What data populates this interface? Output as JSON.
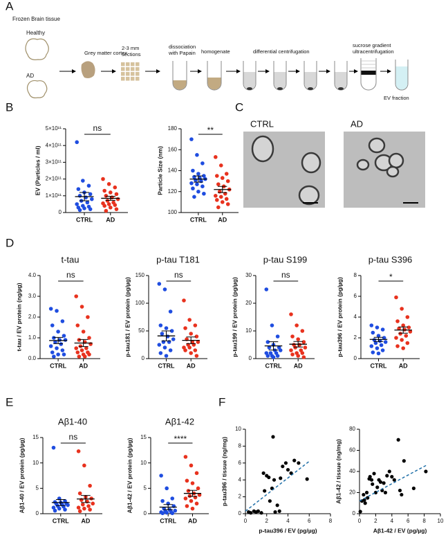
{
  "panel_labels": [
    "A",
    "B",
    "C",
    "D",
    "E",
    "F"
  ],
  "workflow": {
    "title": "Frozen Brain tissue",
    "groups": [
      "Healthy",
      "AD"
    ],
    "steps": [
      [
        "Grey matter cortex"
      ],
      [
        "2-3 mm",
        "sections"
      ],
      [
        "dissociation",
        "with Papain"
      ],
      [
        "homogenate"
      ],
      [
        "differential centrifugation"
      ],
      [
        "sucrose gradient",
        "ultracentrifugation"
      ]
    ],
    "output": "EV fraction"
  },
  "micrographs": {
    "labels": [
      "CTRL",
      "AD"
    ]
  },
  "chart_data": [
    {
      "type": "dotplot",
      "ylabel": "EV (Particles / ml)",
      "annotation": "ns",
      "categories": [
        "CTRL",
        "AD"
      ],
      "ylim": [
        0,
        500000000000
      ],
      "yticks": [
        0,
        {
          "value": 100000000000,
          "label": "1×10¹¹"
        },
        {
          "value": 200000000000,
          "label": "2×10¹¹"
        },
        {
          "value": 300000000000,
          "label": "3×10¹¹"
        },
        {
          "value": 400000000000,
          "label": "4×10¹¹"
        },
        {
          "value": 500000000000,
          "label": "5×10¹¹"
        }
      ],
      "groups": [
        {
          "color": "#1f4de0",
          "values": [
            420000000000,
            190000000000,
            160000000000,
            140000000000,
            120000000000,
            110000000000,
            100000000000,
            90000000000,
            80000000000,
            70000000000,
            60000000000,
            50000000000,
            40000000000,
            35000000000,
            30000000000,
            25000000000,
            20000000000,
            15000000000
          ],
          "mean": 95000000000,
          "sem": 25000000000
        },
        {
          "color": "#e8321e",
          "values": [
            200000000000,
            170000000000,
            150000000000,
            130000000000,
            120000000000,
            110000000000,
            100000000000,
            90000000000,
            80000000000,
            70000000000,
            60000000000,
            55000000000,
            50000000000,
            45000000000,
            40000000000,
            30000000000,
            20000000000,
            10000000000
          ],
          "mean": 85000000000,
          "sem": 12000000000
        }
      ]
    },
    {
      "type": "dotplot",
      "ylabel": "Particle Size (nm)",
      "annotation": "**",
      "categories": [
        "CTRL",
        "AD"
      ],
      "ylim": [
        100,
        180
      ],
      "yticks": [
        100,
        120,
        140,
        160,
        180
      ],
      "groups": [
        {
          "color": "#1f4de0",
          "values": [
            170,
            155,
            147,
            140,
            137,
            135,
            134,
            133,
            132,
            131,
            130,
            128,
            127,
            125,
            123,
            120,
            118,
            115
          ],
          "mean": 132,
          "sem": 3
        },
        {
          "color": "#e8321e",
          "values": [
            153,
            145,
            137,
            135,
            133,
            130,
            127,
            125,
            122,
            120,
            118,
            116,
            115,
            113,
            112,
            110,
            108,
            105
          ],
          "mean": 122,
          "sem": 3
        }
      ]
    },
    {
      "type": "dotplot",
      "title": "t-tau",
      "ylabel": "t-tau / EV protein (ng/µg)",
      "annotation": "ns",
      "categories": [
        "CTRL",
        "AD"
      ],
      "ylim": [
        0,
        4
      ],
      "yticks": [
        {
          "value": 0,
          "label": "0.0"
        },
        {
          "value": 1,
          "label": "1.0"
        },
        {
          "value": 2,
          "label": "2.0"
        },
        {
          "value": 3,
          "label": "3.0"
        },
        {
          "value": 4,
          "label": "4.0"
        }
      ],
      "groups": [
        {
          "color": "#1f4de0",
          "values": [
            2.4,
            2.3,
            1.8,
            1.6,
            1.3,
            1.1,
            1.0,
            0.9,
            0.9,
            0.8,
            0.7,
            0.6,
            0.5,
            0.4,
            0.3,
            0.2,
            0.2,
            0.1
          ],
          "mean": 0.87,
          "sem": 0.15
        },
        {
          "color": "#e8321e",
          "values": [
            3.0,
            2.5,
            2.0,
            1.6,
            1.3,
            1.0,
            0.9,
            0.8,
            0.7,
            0.6,
            0.5,
            0.5,
            0.4,
            0.3,
            0.3,
            0.2,
            0.2,
            0.1,
            0.1
          ],
          "mean": 0.75,
          "sem": 0.17
        }
      ]
    },
    {
      "type": "dotplot",
      "title": "p-tau T181",
      "ylabel": "p-tau181 / EV protein (pg/µg)",
      "annotation": "ns",
      "categories": [
        "CTRL",
        "AD"
      ],
      "ylim": [
        0,
        150
      ],
      "yticks": [
        0,
        50,
        100,
        150
      ],
      "groups": [
        {
          "color": "#1f4de0",
          "values": [
            135,
            125,
            85,
            60,
            55,
            50,
            45,
            40,
            35,
            30,
            30,
            25,
            20,
            15,
            10,
            5
          ],
          "mean": 41,
          "sem": 9
        },
        {
          "color": "#e8321e",
          "values": [
            105,
            70,
            60,
            55,
            45,
            40,
            35,
            30,
            30,
            25,
            25,
            20,
            20,
            15,
            15,
            10,
            5
          ],
          "mean": 33,
          "sem": 6
        }
      ]
    },
    {
      "type": "dotplot",
      "title": "p-tau S199",
      "ylabel": "p-tau199 / EV protein (pg/µg)",
      "annotation": "ns",
      "categories": [
        "CTRL",
        "AD"
      ],
      "ylim": [
        0,
        30
      ],
      "yticks": [
        0,
        10,
        20,
        30
      ],
      "groups": [
        {
          "color": "#1f4de0",
          "values": [
            25,
            12,
            8,
            6,
            5,
            4,
            4,
            3,
            3,
            2,
            2,
            2,
            1,
            1,
            1,
            0.5
          ],
          "mean": 4.6,
          "sem": 1.5
        },
        {
          "color": "#e8321e",
          "values": [
            16,
            12,
            10,
            8,
            7,
            6,
            5,
            5,
            4,
            4,
            3,
            3,
            2,
            2,
            1.5,
            1,
            0.5
          ],
          "mean": 5.2,
          "sem": 1.0
        }
      ]
    },
    {
      "type": "dotplot",
      "title": "p-tau S396",
      "ylabel": "p-tau396 / EV protein (pg/µg)",
      "annotation": "*",
      "categories": [
        "CTRL",
        "AD"
      ],
      "ylim": [
        0,
        8
      ],
      "yticks": [
        0,
        2,
        4,
        6,
        8
      ],
      "groups": [
        {
          "color": "#1f4de0",
          "values": [
            3.2,
            3.0,
            2.8,
            2.5,
            2.2,
            2.0,
            1.8,
            1.7,
            1.6,
            1.5,
            1.3,
            1.2,
            1.0,
            0.8,
            0.6,
            0.5
          ],
          "mean": 1.85,
          "sem": 0.2
        },
        {
          "color": "#e8321e",
          "values": [
            5.9,
            4.8,
            4.0,
            3.6,
            3.2,
            3.0,
            2.9,
            2.8,
            2.6,
            2.4,
            2.2,
            2.0,
            1.8,
            1.5,
            1.2,
            1.0
          ],
          "mean": 2.75,
          "sem": 0.3
        }
      ]
    },
    {
      "type": "dotplot",
      "title": "Aβ1-40",
      "ylabel": "Aβ1-40 / EV protein (pg/µg)",
      "annotation": "ns",
      "categories": [
        "CTRL",
        "AD"
      ],
      "ylim": [
        0,
        15
      ],
      "yticks": [
        0,
        5,
        10,
        15
      ],
      "groups": [
        {
          "color": "#1f4de0",
          "values": [
            13,
            3,
            2.5,
            2.3,
            2.2,
            2,
            1.9,
            1.8,
            1.7,
            1.5,
            1.4,
            1.2,
            1,
            0.8,
            0.6
          ],
          "mean": 2.2,
          "sem": 0.6
        },
        {
          "color": "#e8321e",
          "values": [
            12.3,
            9.5,
            5.5,
            4,
            3.3,
            3,
            2.7,
            2.4,
            2,
            1.8,
            1.5,
            1.2,
            1,
            0.8,
            0.5
          ],
          "mean": 2.9,
          "sem": 0.7
        }
      ]
    },
    {
      "type": "dotplot",
      "title": "Aβ1-42",
      "ylabel": "Aβ1-42 / EV protein (pg/µg)",
      "annotation": "****",
      "categories": [
        "CTRL",
        "AD"
      ],
      "ylim": [
        0,
        15
      ],
      "yticks": [
        0,
        5,
        10,
        15
      ],
      "groups": [
        {
          "color": "#1f4de0",
          "values": [
            7.5,
            5,
            3,
            2.5,
            2,
            1.5,
            1,
            0.8,
            0.6,
            0.5,
            0.4,
            0.3,
            0.2,
            0.1,
            0.1
          ],
          "mean": 1.3,
          "sem": 0.5
        },
        {
          "color": "#e8321e",
          "values": [
            11.2,
            9.5,
            8,
            6.5,
            6,
            5,
            4.5,
            4,
            3.7,
            3.5,
            3.2,
            3,
            2.5,
            2,
            1.5,
            1
          ],
          "mean": 4.0,
          "sem": 0.6
        }
      ]
    },
    {
      "type": "scatter",
      "xlabel": "p-tau396 / EV (pg/µg)",
      "ylabel": "p-tau396 / tissue (ng/mg)",
      "color": "#000000",
      "fit_color": "#1f6fa8",
      "xlim": [
        0,
        8
      ],
      "xticks": [
        0,
        2,
        4,
        6,
        8
      ],
      "ylim": [
        0,
        10
      ],
      "yticks": [
        0,
        2,
        4,
        6,
        8,
        10
      ],
      "x": [
        0.3,
        0.5,
        0.8,
        1,
        1.2,
        1.5,
        1.7,
        1.8,
        2,
        2.2,
        2.3,
        2.5,
        2.6,
        2.7,
        2.8,
        3,
        3.2,
        3.3,
        3.5,
        3.8,
        4,
        4.3,
        4.6,
        5,
        5.8
      ],
      "y": [
        0.2,
        0.1,
        0.3,
        0.2,
        0.3,
        0.1,
        4.8,
        2.7,
        4.5,
        4.3,
        1.5,
        3.0,
        9.1,
        4.0,
        0.2,
        1.0,
        0.3,
        4.2,
        5.6,
        6.0,
        5.2,
        4.8,
        6.3,
        6.0,
        4.1
      ],
      "fit": {
        "x": [
          0,
          6
        ],
        "y": [
          0.3,
          6.2
        ]
      }
    },
    {
      "type": "scatter",
      "xlabel": "Aβ1-42 / EV (pg/µg)",
      "ylabel": "Aβ1-42 / tissue (ng/mg)",
      "color": "#000000",
      "fit_color": "#1f6fa8",
      "xlim": [
        0,
        10
      ],
      "xticks": [
        0,
        2,
        4,
        6,
        8,
        10
      ],
      "ylim": [
        0,
        80
      ],
      "yticks": [
        0,
        20,
        40,
        60,
        80
      ],
      "x": [
        0.1,
        0.3,
        0.5,
        0.6,
        0.7,
        0.9,
        1.0,
        1.2,
        1.3,
        1.5,
        1.6,
        1.8,
        2,
        2.2,
        2.4,
        2.6,
        2.8,
        3.0,
        3.2,
        3.4,
        3.7,
        4,
        4.3,
        4.8,
        5,
        5.2,
        5.5,
        6.7,
        8.2
      ],
      "y": [
        2,
        12,
        18,
        13,
        10,
        20,
        15,
        33,
        35,
        32,
        28,
        38,
        20,
        25,
        32,
        30,
        22,
        29,
        20,
        36,
        40,
        35,
        32,
        70,
        22,
        18,
        50,
        24,
        40
      ],
      "fit": {
        "x": [
          0,
          8.3
        ],
        "y": [
          12,
          46
        ]
      }
    }
  ]
}
